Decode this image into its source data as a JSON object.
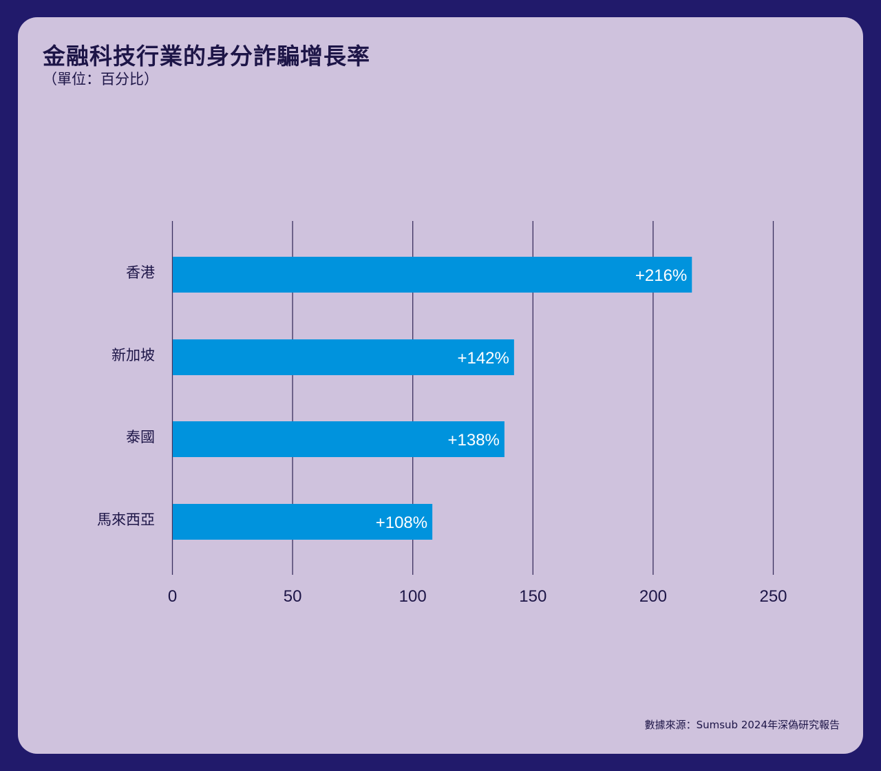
{
  "title": "金融科技行業的身分詐騙增長率",
  "subtitle": "（單位：百分比）",
  "source": "數據來源：Sumsub 2024年深偽研究報告",
  "colors": {
    "background": "#211a6b",
    "card": "#cfc2dd",
    "bar": "#0093dd",
    "gridline": "#3a2f5e",
    "text": "#1d1547"
  },
  "chart_data": {
    "type": "bar",
    "orientation": "horizontal",
    "categories": [
      "香港",
      "新加坡",
      "泰國",
      "馬來西亞"
    ],
    "values": [
      216,
      142,
      138,
      108
    ],
    "data_labels": [
      "+216%",
      "+142%",
      "+138%",
      "+108%"
    ],
    "xlim": [
      0,
      250
    ],
    "x_ticks": [
      0,
      50,
      100,
      150,
      200,
      250
    ],
    "grid": true
  }
}
